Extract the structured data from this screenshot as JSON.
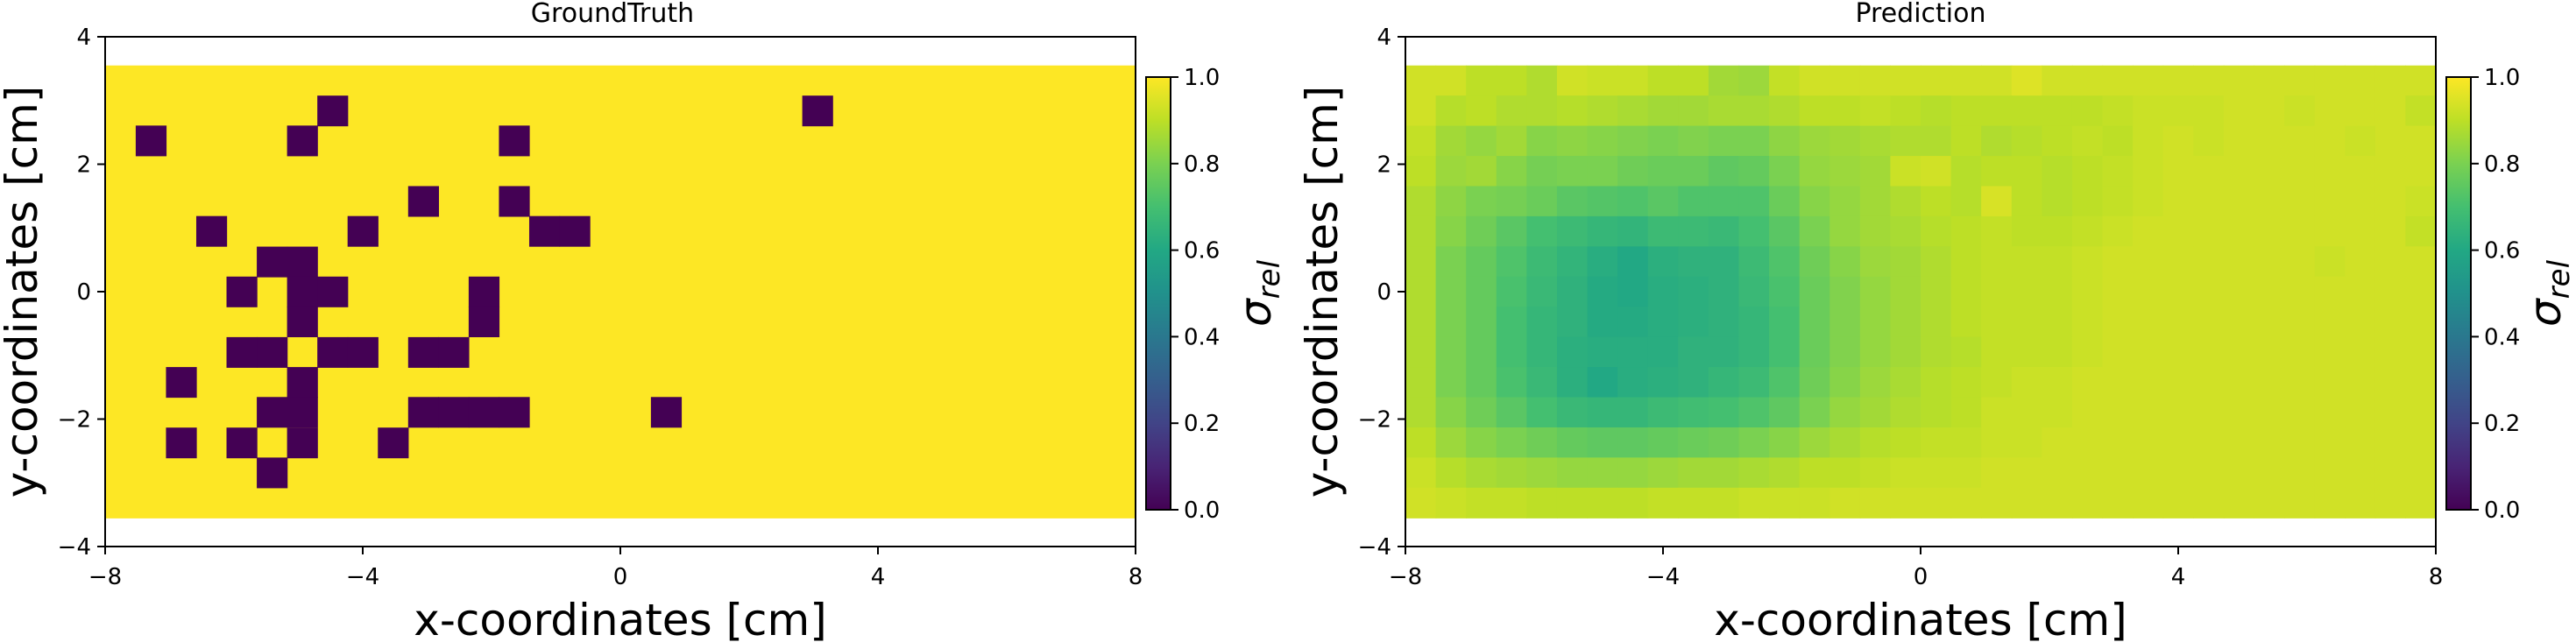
{
  "chart_data": [
    {
      "type": "heatmap",
      "title": "GroundTruth",
      "xlabel": "x-coordinates [cm]",
      "ylabel": "y-coordinates [cm]",
      "xlim": [
        -8,
        8
      ],
      "ylim": [
        -4,
        4
      ],
      "xticks": [
        "−8",
        "−4",
        "0",
        "4",
        "8"
      ],
      "yticks": [
        "4",
        "2",
        "0",
        "−2",
        "−4"
      ],
      "grid": {
        "x_min": -8,
        "x_max": 8,
        "y_min": -3.55,
        "y_max": 3.55,
        "cols": 34,
        "rows": 15
      },
      "colormap": "viridis",
      "colorbar": {
        "label_symbol": "σ",
        "label_sub": "rel",
        "ticks": [
          "1.0",
          "0.8",
          "0.6",
          "0.4",
          "0.2",
          "0.0"
        ],
        "range": [
          0,
          1
        ]
      },
      "default_value": 1.0,
      "cells": [
        {
          "x": -7.29,
          "y": 2.37,
          "v": 0.0
        },
        {
          "x": -6.82,
          "y": -1.42,
          "v": 0.0
        },
        {
          "x": -6.82,
          "y": -2.37,
          "v": 0.0
        },
        {
          "x": -6.35,
          "y": 0.95,
          "v": 0.0
        },
        {
          "x": -5.88,
          "y": 0.0,
          "v": 0.0
        },
        {
          "x": -5.88,
          "y": -0.95,
          "v": 0.0
        },
        {
          "x": -5.88,
          "y": -2.37,
          "v": 0.0
        },
        {
          "x": -5.41,
          "y": 0.47,
          "v": 0.0
        },
        {
          "x": -5.41,
          "y": -0.95,
          "v": 0.0
        },
        {
          "x": -5.41,
          "y": -1.89,
          "v": 0.0
        },
        {
          "x": -5.41,
          "y": -2.84,
          "v": 0.0
        },
        {
          "x": -4.94,
          "y": 2.37,
          "v": 0.0
        },
        {
          "x": -4.94,
          "y": 0.47,
          "v": 0.0
        },
        {
          "x": -4.94,
          "y": 0.0,
          "v": 0.0
        },
        {
          "x": -4.94,
          "y": -0.47,
          "v": 0.0
        },
        {
          "x": -4.94,
          "y": -1.42,
          "v": 0.0
        },
        {
          "x": -4.94,
          "y": -1.89,
          "v": 0.0
        },
        {
          "x": -4.94,
          "y": -2.37,
          "v": 0.0
        },
        {
          "x": -4.47,
          "y": 2.84,
          "v": 0.0
        },
        {
          "x": -4.47,
          "y": 0.0,
          "v": 0.0
        },
        {
          "x": -4.47,
          "y": -0.95,
          "v": 0.0
        },
        {
          "x": -4.0,
          "y": 0.95,
          "v": 0.0
        },
        {
          "x": -4.0,
          "y": -0.95,
          "v": 0.0
        },
        {
          "x": -3.53,
          "y": -2.37,
          "v": 0.0
        },
        {
          "x": -3.06,
          "y": 1.42,
          "v": 0.0
        },
        {
          "x": -3.06,
          "y": -0.95,
          "v": 0.0
        },
        {
          "x": -3.06,
          "y": -1.89,
          "v": 0.0
        },
        {
          "x": -2.59,
          "y": -0.95,
          "v": 0.0
        },
        {
          "x": -2.59,
          "y": -1.89,
          "v": 0.0
        },
        {
          "x": -2.12,
          "y": 0.0,
          "v": 0.0
        },
        {
          "x": -2.12,
          "y": -0.47,
          "v": 0.0
        },
        {
          "x": -2.12,
          "y": -1.89,
          "v": 0.0
        },
        {
          "x": -1.65,
          "y": 2.37,
          "v": 0.0
        },
        {
          "x": -1.65,
          "y": 1.42,
          "v": 0.0
        },
        {
          "x": -1.65,
          "y": -1.89,
          "v": 0.0
        },
        {
          "x": -1.18,
          "y": 0.95,
          "v": 0.0
        },
        {
          "x": -0.71,
          "y": 0.95,
          "v": 0.0
        },
        {
          "x": 0.71,
          "y": -1.89,
          "v": 0.0
        },
        {
          "x": 3.06,
          "y": 2.84,
          "v": 0.0
        }
      ]
    },
    {
      "type": "heatmap",
      "title": "Prediction",
      "xlabel": "x-coordinates [cm]",
      "ylabel": "y-coordinates [cm]",
      "xlim": [
        -8,
        8
      ],
      "ylim": [
        -4,
        4
      ],
      "xticks": [
        "−8",
        "−4",
        "0",
        "4",
        "8"
      ],
      "yticks": [
        "4",
        "2",
        "0",
        "−2",
        "−4"
      ],
      "grid": {
        "x_min": -8,
        "x_max": 8,
        "y_min": -3.55,
        "y_max": 3.55,
        "cols": 34,
        "rows": 15
      },
      "colormap": "viridis",
      "colorbar": {
        "label_symbol": "σ",
        "label_sub": "rel",
        "ticks": [
          "1.0",
          "0.8",
          "0.6",
          "0.4",
          "0.2",
          "0.0"
        ],
        "range": [
          0,
          1
        ]
      },
      "values": [
        [
          0.93,
          0.93,
          0.9,
          0.9,
          0.88,
          0.93,
          0.92,
          0.92,
          0.9,
          0.9,
          0.86,
          0.85,
          0.91,
          0.93,
          0.93,
          0.93,
          0.93,
          0.93,
          0.93,
          0.93,
          0.95,
          0.93,
          0.93,
          0.93,
          0.93,
          0.93,
          0.93,
          0.93,
          0.93,
          0.93,
          0.93,
          0.93,
          0.93,
          0.93
        ],
        [
          0.93,
          0.89,
          0.9,
          0.88,
          0.88,
          0.89,
          0.88,
          0.87,
          0.86,
          0.86,
          0.87,
          0.87,
          0.88,
          0.9,
          0.9,
          0.91,
          0.9,
          0.89,
          0.9,
          0.9,
          0.9,
          0.9,
          0.9,
          0.91,
          0.92,
          0.92,
          0.92,
          0.93,
          0.93,
          0.92,
          0.93,
          0.93,
          0.93,
          0.91
        ],
        [
          0.91,
          0.86,
          0.84,
          0.86,
          0.82,
          0.83,
          0.82,
          0.81,
          0.8,
          0.81,
          0.8,
          0.8,
          0.83,
          0.85,
          0.86,
          0.87,
          0.88,
          0.88,
          0.9,
          0.88,
          0.89,
          0.9,
          0.91,
          0.9,
          0.92,
          0.93,
          0.92,
          0.93,
          0.93,
          0.93,
          0.93,
          0.92,
          0.93,
          0.93
        ],
        [
          0.9,
          0.85,
          0.86,
          0.82,
          0.79,
          0.8,
          0.8,
          0.78,
          0.77,
          0.77,
          0.75,
          0.76,
          0.8,
          0.84,
          0.85,
          0.86,
          0.92,
          0.93,
          0.89,
          0.9,
          0.9,
          0.89,
          0.9,
          0.91,
          0.92,
          0.93,
          0.93,
          0.93,
          0.93,
          0.93,
          0.93,
          0.93,
          0.93,
          0.93
        ],
        [
          0.88,
          0.83,
          0.8,
          0.79,
          0.77,
          0.74,
          0.73,
          0.72,
          0.74,
          0.72,
          0.72,
          0.72,
          0.77,
          0.82,
          0.84,
          0.86,
          0.88,
          0.9,
          0.89,
          0.94,
          0.9,
          0.89,
          0.9,
          0.91,
          0.92,
          0.93,
          0.93,
          0.93,
          0.93,
          0.93,
          0.93,
          0.93,
          0.93,
          0.92
        ],
        [
          0.88,
          0.82,
          0.78,
          0.74,
          0.7,
          0.68,
          0.66,
          0.65,
          0.68,
          0.68,
          0.67,
          0.7,
          0.74,
          0.8,
          0.84,
          0.86,
          0.87,
          0.89,
          0.9,
          0.91,
          0.9,
          0.9,
          0.91,
          0.92,
          0.93,
          0.93,
          0.93,
          0.93,
          0.93,
          0.93,
          0.93,
          0.93,
          0.93,
          0.91
        ],
        [
          0.88,
          0.8,
          0.76,
          0.72,
          0.68,
          0.65,
          0.62,
          0.6,
          0.63,
          0.64,
          0.64,
          0.68,
          0.72,
          0.78,
          0.82,
          0.85,
          0.86,
          0.88,
          0.9,
          0.91,
          0.91,
          0.91,
          0.92,
          0.93,
          0.93,
          0.93,
          0.93,
          0.93,
          0.93,
          0.93,
          0.92,
          0.93,
          0.93,
          0.93
        ],
        [
          0.88,
          0.8,
          0.76,
          0.71,
          0.67,
          0.64,
          0.61,
          0.6,
          0.62,
          0.63,
          0.64,
          0.67,
          0.71,
          0.77,
          0.81,
          0.84,
          0.86,
          0.88,
          0.9,
          0.91,
          0.91,
          0.91,
          0.92,
          0.93,
          0.93,
          0.93,
          0.93,
          0.93,
          0.93,
          0.93,
          0.93,
          0.93,
          0.93,
          0.93
        ],
        [
          0.88,
          0.8,
          0.76,
          0.7,
          0.66,
          0.64,
          0.61,
          0.61,
          0.62,
          0.63,
          0.64,
          0.66,
          0.7,
          0.77,
          0.81,
          0.84,
          0.86,
          0.88,
          0.9,
          0.91,
          0.91,
          0.91,
          0.92,
          0.93,
          0.93,
          0.93,
          0.93,
          0.93,
          0.93,
          0.93,
          0.93,
          0.93,
          0.93,
          0.93
        ],
        [
          0.88,
          0.8,
          0.76,
          0.7,
          0.66,
          0.63,
          0.62,
          0.62,
          0.62,
          0.64,
          0.64,
          0.66,
          0.7,
          0.77,
          0.81,
          0.84,
          0.86,
          0.88,
          0.89,
          0.91,
          0.91,
          0.91,
          0.92,
          0.93,
          0.93,
          0.93,
          0.93,
          0.93,
          0.93,
          0.93,
          0.93,
          0.93,
          0.93,
          0.93
        ],
        [
          0.88,
          0.8,
          0.76,
          0.71,
          0.67,
          0.63,
          0.6,
          0.62,
          0.63,
          0.64,
          0.66,
          0.68,
          0.72,
          0.78,
          0.82,
          0.85,
          0.87,
          0.89,
          0.9,
          0.91,
          0.92,
          0.92,
          0.93,
          0.93,
          0.93,
          0.93,
          0.93,
          0.93,
          0.93,
          0.93,
          0.93,
          0.93,
          0.93,
          0.93
        ],
        [
          0.88,
          0.82,
          0.78,
          0.74,
          0.7,
          0.67,
          0.66,
          0.66,
          0.68,
          0.69,
          0.7,
          0.72,
          0.75,
          0.8,
          0.84,
          0.86,
          0.88,
          0.89,
          0.9,
          0.92,
          0.92,
          0.92,
          0.93,
          0.93,
          0.93,
          0.93,
          0.93,
          0.93,
          0.93,
          0.93,
          0.93,
          0.93,
          0.93,
          0.93
        ],
        [
          0.9,
          0.85,
          0.82,
          0.8,
          0.78,
          0.76,
          0.75,
          0.75,
          0.76,
          0.77,
          0.78,
          0.8,
          0.82,
          0.85,
          0.87,
          0.89,
          0.9,
          0.91,
          0.91,
          0.92,
          0.92,
          0.93,
          0.93,
          0.93,
          0.93,
          0.93,
          0.93,
          0.93,
          0.93,
          0.93,
          0.93,
          0.93,
          0.93,
          0.93
        ],
        [
          0.92,
          0.89,
          0.87,
          0.86,
          0.85,
          0.84,
          0.84,
          0.84,
          0.85,
          0.86,
          0.86,
          0.87,
          0.88,
          0.9,
          0.9,
          0.91,
          0.92,
          0.92,
          0.92,
          0.93,
          0.93,
          0.93,
          0.93,
          0.93,
          0.93,
          0.93,
          0.93,
          0.93,
          0.93,
          0.93,
          0.93,
          0.93,
          0.93,
          0.93
        ],
        [
          0.93,
          0.92,
          0.91,
          0.91,
          0.9,
          0.9,
          0.9,
          0.9,
          0.91,
          0.91,
          0.91,
          0.92,
          0.92,
          0.92,
          0.93,
          0.93,
          0.93,
          0.93,
          0.93,
          0.93,
          0.93,
          0.93,
          0.93,
          0.93,
          0.93,
          0.93,
          0.93,
          0.93,
          0.93,
          0.93,
          0.93,
          0.93,
          0.93,
          0.93
        ]
      ]
    }
  ]
}
